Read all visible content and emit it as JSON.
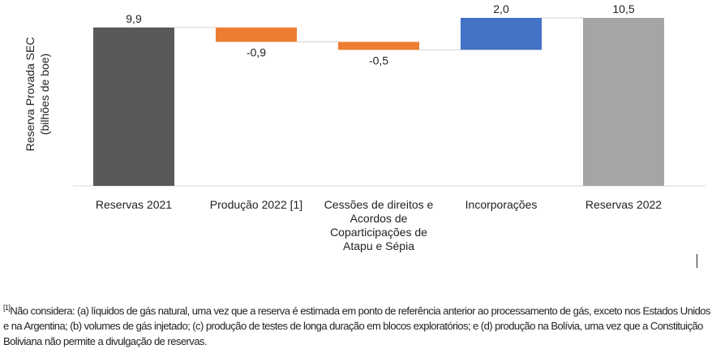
{
  "chart_data": {
    "type": "waterfall",
    "title": "",
    "ylabel": [
      "Reserva Provada SEC",
      "(bilhões de boe)"
    ],
    "xlabel": "",
    "ylim": [
      0,
      10.5
    ],
    "grid": false,
    "categories": [
      [
        "Reservas 2021"
      ],
      [
        "Produção 2022 [1]"
      ],
      [
        "Cessões de direitos e",
        "Acordos de",
        "Coparticipações de",
        "Atapu e Sépia"
      ],
      [
        "Incorporações"
      ],
      [
        "Reservas 2022"
      ]
    ],
    "values": [
      9.9,
      -0.9,
      -0.5,
      2.0,
      10.5
    ],
    "value_labels": [
      "9,9",
      "-0,9",
      "-0,5",
      "2,0",
      "10,5"
    ],
    "kinds": [
      "total",
      "delta",
      "delta",
      "delta",
      "total"
    ],
    "colors": [
      "#595959",
      "#ED7D31",
      "#ED7D31",
      "#4472C4",
      "#A5A5A5"
    ]
  },
  "footnote": {
    "marker": "[1]",
    "text": "Não considera: (a) líquidos de gás natural, uma vez que a reserva é estimada em ponto de referência anterior ao processamento de gás, exceto nos Estados Unidos e na Argentina; (b) volumes de gás injetado; (c) produção de testes de longa duração em blocos exploratórios; e (d) produção na Bolívia, uma vez que a Constituição Boliviana não permite a divulgação de reservas."
  }
}
